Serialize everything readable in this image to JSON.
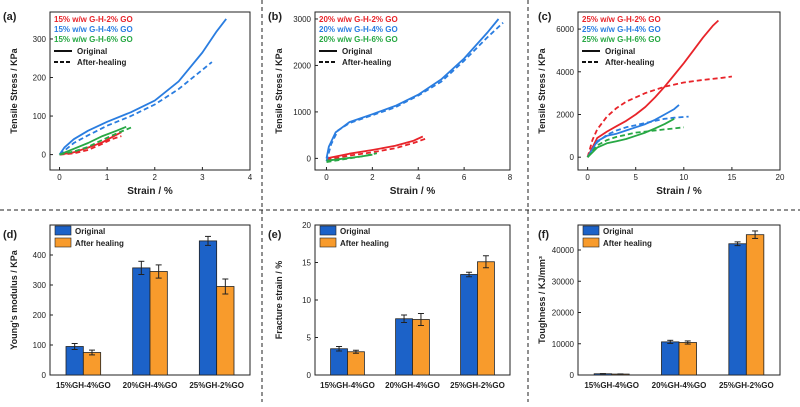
{
  "figure": {
    "kind": "composite multi-panel materials figure"
  },
  "chart_data": [
    {
      "id": "a",
      "panel_label": "(a)",
      "type": "line",
      "title": "",
      "xlabel": "Strain / %",
      "ylabel": "Tensile Stress / KPa",
      "xlim": [
        -0.2,
        4
      ],
      "ylim": [
        -40,
        370
      ],
      "xticks": [
        0,
        1,
        2,
        3,
        4
      ],
      "yticks": [
        0,
        100,
        200,
        300
      ],
      "legend_position": "top-left",
      "style_legend": [
        {
          "label": "Original",
          "dash": "solid"
        },
        {
          "label": "After-healing",
          "dash": "dashed"
        }
      ],
      "series": [
        {
          "name": "15% w/w G-H-2% GO",
          "color": "#e8242a",
          "original": {
            "x": [
              0,
              0.3,
              0.6,
              0.9,
              1.1,
              1.3
            ],
            "y": [
              0,
              6,
              18,
              32,
              45,
              58
            ]
          },
          "after_healing": {
            "x": [
              0,
              0.3,
              0.6,
              0.9,
              1.1,
              1.3
            ],
            "y": [
              0,
              3,
              12,
              28,
              40,
              48
            ]
          }
        },
        {
          "name": "15% w/w G-H-4% GO",
          "color": "#2a7de0",
          "original": {
            "x": [
              0,
              0.1,
              0.3,
              0.6,
              1,
              1.5,
              2,
              2.5,
              3,
              3.3,
              3.5
            ],
            "y": [
              0,
              18,
              40,
              62,
              85,
              110,
              140,
              190,
              265,
              320,
              352
            ]
          },
          "after_healing": {
            "x": [
              0,
              0.3,
              0.6,
              1,
              1.5,
              2,
              2.5,
              3,
              3.2
            ],
            "y": [
              0,
              30,
              50,
              75,
              100,
              130,
              170,
              220,
              240
            ]
          }
        },
        {
          "name": "15% w/w G-H-6% GO",
          "color": "#27a844",
          "original": {
            "x": [
              0,
              0.3,
              0.6,
              0.9,
              1.2,
              1.4
            ],
            "y": [
              0,
              15,
              30,
              48,
              62,
              72
            ]
          },
          "after_healing": {
            "x": [
              0,
              0.3,
              0.6,
              0.9,
              1.2,
              1.5
            ],
            "y": [
              0,
              8,
              20,
              38,
              55,
              70
            ]
          }
        }
      ]
    },
    {
      "id": "b",
      "panel_label": "(b)",
      "type": "line",
      "title": "",
      "xlabel": "Strain / %",
      "ylabel": "Tensile Stress / KPa",
      "xlim": [
        -0.5,
        8
      ],
      "ylim": [
        -250,
        3150
      ],
      "xticks": [
        0,
        2,
        4,
        6,
        8
      ],
      "yticks": [
        0,
        1000,
        2000,
        3000
      ],
      "legend_position": "top-left",
      "style_legend": [
        {
          "label": "Original",
          "dash": "solid"
        },
        {
          "label": "After-healing",
          "dash": "dashed"
        }
      ],
      "series": [
        {
          "name": "20% w/w G-H-2% GO",
          "color": "#e8242a",
          "original": {
            "x": [
              0,
              1,
              2,
              3,
              3.8,
              4.2
            ],
            "y": [
              0,
              100,
              180,
              270,
              380,
              470
            ]
          },
          "after_healing": {
            "x": [
              0,
              1,
              2,
              3,
              3.8,
              4.3
            ],
            "y": [
              -30,
              60,
              130,
              220,
              330,
              420
            ]
          }
        },
        {
          "name": "20% w/w G-H-4% GO",
          "color": "#2a7de0",
          "original": {
            "x": [
              0,
              0.1,
              0.4,
              1,
              2,
              3,
              4,
              5,
              6,
              7,
              7.5
            ],
            "y": [
              0,
              250,
              560,
              780,
              950,
              1130,
              1370,
              1700,
              2150,
              2700,
              3000
            ]
          },
          "after_healing": {
            "x": [
              0,
              0.2,
              0.5,
              1,
              2,
              3,
              4,
              5,
              6,
              7,
              7.7
            ],
            "y": [
              -60,
              300,
              600,
              760,
              930,
              1100,
              1350,
              1650,
              2100,
              2600,
              2920
            ]
          }
        },
        {
          "name": "20% w/w G-H-6% GO",
          "color": "#27a844",
          "original": {
            "x": [
              0,
              0.5,
              1,
              1.5,
              2
            ],
            "y": [
              -50,
              -20,
              10,
              40,
              80
            ]
          },
          "after_healing": {
            "x": [
              0,
              0.5,
              1,
              1.5,
              2,
              2.2
            ],
            "y": [
              -80,
              -40,
              0,
              40,
              90,
              110
            ]
          }
        }
      ]
    },
    {
      "id": "c",
      "panel_label": "(c)",
      "type": "line",
      "title": "",
      "xlabel": "Strain / %",
      "ylabel": "Tensile Stress / KPa",
      "xlim": [
        -1,
        20
      ],
      "ylim": [
        -600,
        6800
      ],
      "xticks": [
        0,
        5,
        10,
        15,
        20
      ],
      "yticks": [
        0,
        2000,
        4000,
        6000
      ],
      "legend_position": "top-left",
      "style_legend": [
        {
          "label": "Original",
          "dash": "solid"
        },
        {
          "label": "After-healing",
          "dash": "dashed"
        }
      ],
      "series": [
        {
          "name": "25% w/w G-H-2% GO",
          "color": "#e8242a",
          "original": {
            "x": [
              0,
              1,
              2,
              3,
              4,
              5,
              6,
              7,
              8,
              9,
              10,
              11,
              12,
              13,
              13.6
            ],
            "y": [
              0,
              900,
              1200,
              1450,
              1700,
              2000,
              2350,
              2800,
              3300,
              3850,
              4400,
              5000,
              5600,
              6150,
              6400
            ]
          },
          "after_healing": {
            "x": [
              0,
              0.5,
              1,
              2,
              3,
              4,
              6,
              8,
              10,
              12,
              14,
              15
            ],
            "y": [
              0,
              800,
              1300,
              1900,
              2300,
              2600,
              3000,
              3300,
              3500,
              3620,
              3720,
              3780
            ]
          }
        },
        {
          "name": "25% w/w G-H-4% GO",
          "color": "#2a7de0",
          "original": {
            "x": [
              0,
              1,
              2,
              3,
              4,
              5,
              6,
              7,
              8,
              9,
              9.5
            ],
            "y": [
              0,
              750,
              1000,
              1100,
              1250,
              1400,
              1550,
              1750,
              2000,
              2250,
              2450
            ]
          },
          "after_healing": {
            "x": [
              0,
              1,
              2,
              3,
              4,
              5,
              6,
              7,
              8,
              9,
              10.5
            ],
            "y": [
              0,
              700,
              1050,
              1250,
              1400,
              1500,
              1600,
              1700,
              1800,
              1850,
              1900
            ]
          }
        },
        {
          "name": "25% w/w G-H-6% GO",
          "color": "#27a844",
          "original": {
            "x": [
              0,
              1,
              2,
              3,
              4,
              5,
              6,
              7,
              8,
              9
            ],
            "y": [
              0,
              450,
              650,
              750,
              850,
              1000,
              1150,
              1350,
              1550,
              1800
            ]
          },
          "after_healing": {
            "x": [
              0,
              1,
              2,
              3,
              4,
              5,
              6,
              7,
              8,
              9,
              10
            ],
            "y": [
              0,
              550,
              800,
              950,
              1050,
              1150,
              1200,
              1250,
              1300,
              1350,
              1400
            ]
          }
        }
      ]
    },
    {
      "id": "d",
      "panel_label": "(d)",
      "type": "bar",
      "title": "",
      "xlabel": "",
      "ylabel": "Young's modulus / KPa",
      "ylim": [
        0,
        500
      ],
      "yticks": [
        0,
        100,
        200,
        300,
        400
      ],
      "legend_position": "top-left",
      "categories": [
        "15%GH-4%GO",
        "20%GH-4%GO",
        "25%GH-2%GO"
      ],
      "series": [
        {
          "name": "Original",
          "color": "#1c62c8",
          "values": [
            95,
            357,
            447
          ],
          "errors": [
            10,
            22,
            15
          ]
        },
        {
          "name": "After healing",
          "color": "#f89b2c",
          "values": [
            75,
            345,
            295
          ],
          "errors": [
            8,
            22,
            25
          ]
        }
      ]
    },
    {
      "id": "e",
      "panel_label": "(e)",
      "type": "bar",
      "title": "",
      "xlabel": "",
      "ylabel": "Fracture strain / %",
      "ylim": [
        0,
        20
      ],
      "yticks": [
        0,
        5,
        10,
        15,
        20
      ],
      "legend_position": "top-left",
      "categories": [
        "15%GH-4%GO",
        "20%GH-4%GO",
        "25%GH-2%GO"
      ],
      "series": [
        {
          "name": "Original",
          "color": "#1c62c8",
          "values": [
            3.5,
            7.5,
            13.4
          ],
          "errors": [
            0.3,
            0.5,
            0.3
          ]
        },
        {
          "name": "After healing",
          "color": "#f89b2c",
          "values": [
            3.1,
            7.4,
            15.1
          ],
          "errors": [
            0.2,
            0.8,
            0.8
          ]
        }
      ]
    },
    {
      "id": "f",
      "panel_label": "(f)",
      "type": "bar",
      "title": "",
      "xlabel": "",
      "ylabel": "Toughness / KJ/mm³",
      "ylim": [
        0,
        48000
      ],
      "yticks": [
        0,
        10000,
        20000,
        30000,
        40000
      ],
      "legend_position": "top-left",
      "categories": [
        "15%GH-4%GO",
        "20%GH-4%GO",
        "25%GH-2%GO"
      ],
      "series": [
        {
          "name": "Original",
          "color": "#1c62c8",
          "values": [
            400,
            10600,
            42000
          ],
          "errors": [
            50,
            500,
            600
          ]
        },
        {
          "name": "After healing",
          "color": "#f89b2c",
          "values": [
            300,
            10400,
            44900
          ],
          "errors": [
            50,
            500,
            1200
          ]
        }
      ]
    }
  ]
}
